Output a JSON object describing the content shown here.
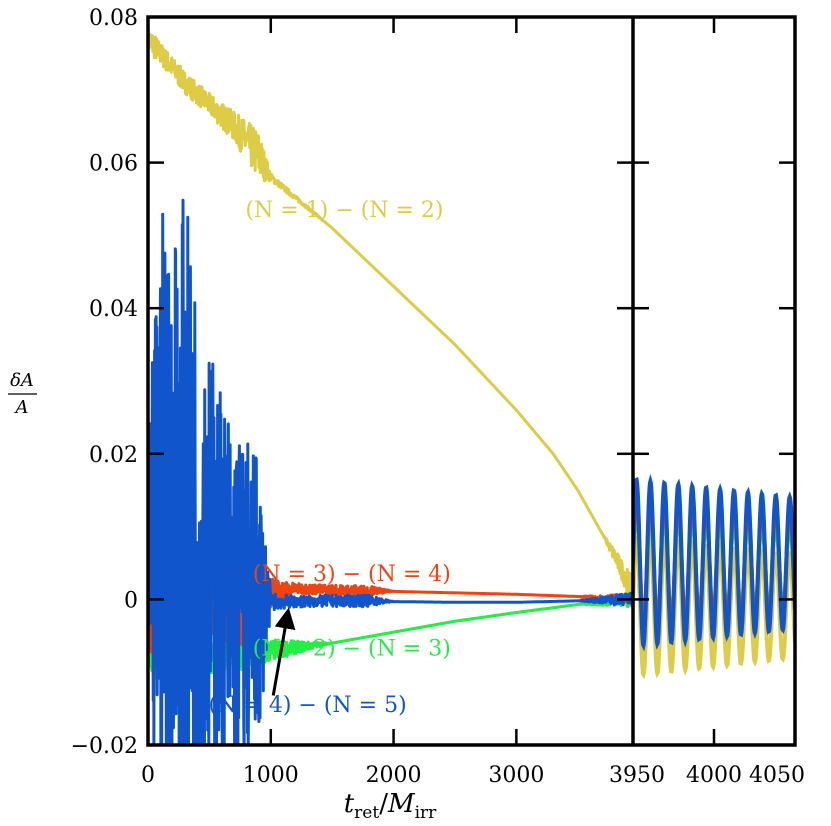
{
  "chart_data": {
    "type": "line",
    "ylabel": {
      "numerator": "δA",
      "denominator": "A"
    },
    "xlabel": {
      "t": "t",
      "t_sub": "ret",
      "M": "M",
      "M_sub": "irr"
    },
    "panels": [
      {
        "name": "left",
        "xlim": [
          0,
          3950
        ],
        "xticks": [
          0,
          1000,
          2000,
          3000
        ]
      },
      {
        "name": "right",
        "xlim": [
          3950,
          4050
        ],
        "xticks": [
          3950,
          4000,
          4050
        ]
      }
    ],
    "ylim": [
      -0.02,
      0.08
    ],
    "yticks": [
      -0.02,
      0,
      0.02,
      0.04,
      0.06,
      0.08
    ],
    "ytick_labels": [
      "−0.02",
      "0",
      "0.02",
      "0.04",
      "0.06",
      "0.08"
    ],
    "xtick_labels": [
      "0",
      "1000",
      "2000",
      "3000",
      "3950",
      "4000",
      "4050"
    ],
    "grid": false,
    "series": [
      {
        "name": "(N = 1) − (N = 2)",
        "color": "#DDCC44",
        "left": {
          "x": [
            0,
            100,
            300,
            500,
            700,
            900,
            1000,
            1500,
            2000,
            2500,
            3000,
            3300,
            3500,
            3700,
            3800,
            3950
          ],
          "y": [
            0.077,
            0.075,
            0.071,
            0.068,
            0.065,
            0.061,
            0.058,
            0.051,
            0.043,
            0.035,
            0.026,
            0.02,
            0.015,
            0.009,
            0.006,
            0.001
          ],
          "noise": [
            0.002,
            0.0015,
            0.0015,
            0.0015,
            0.002,
            0.0035,
            0.0005,
            0,
            0,
            0,
            0,
            0,
            0,
            0,
            0.001,
            0.002
          ]
        },
        "right": {
          "mid": -0.001,
          "amp_start": 0.0095,
          "amp_end": 0.007,
          "period": 8.6
        }
      },
      {
        "name": "(N = 2) − (N = 3)",
        "color": "#22EE44",
        "left": {
          "x": [
            0,
            100,
            300,
            500,
            700,
            900,
            1000,
            1500,
            2000,
            2500,
            3000,
            3500,
            3950
          ],
          "y": [
            -0.007,
            -0.008,
            -0.0085,
            -0.008,
            -0.0078,
            -0.0076,
            -0.007,
            -0.006,
            -0.0045,
            -0.003,
            -0.0018,
            -0.0007,
            0.0
          ],
          "noise": [
            0.002,
            0.004,
            0.003,
            0.0025,
            0.0025,
            0.002,
            0.0015,
            0,
            0,
            0,
            0,
            0,
            0.001
          ]
        },
        "right": {
          "mid": 0.0045,
          "amp_start": 0.0077,
          "amp_end": 0.0055,
          "period": 8.6
        }
      },
      {
        "name": "(N = 3) − (N = 4)",
        "color": "#EE4411",
        "left": {
          "x": [
            0,
            100,
            300,
            500,
            700,
            900,
            1000,
            1200,
            1500,
            1800,
            2000,
            2500,
            3000,
            3500,
            3950
          ],
          "y": [
            0.0,
            0.0,
            0.0,
            0.0,
            0.0,
            0.0,
            0.001,
            0.0015,
            0.0013,
            0.0012,
            0.0011,
            0.0009,
            0.0007,
            0.0004,
            0.0
          ],
          "noise": [
            0.006,
            0.012,
            0.01,
            0.006,
            0.006,
            0.008,
            0.002,
            0.0007,
            0.0007,
            0.0007,
            0,
            0,
            0,
            0,
            0.0008
          ]
        },
        "right": {
          "mid": 0.005,
          "amp_start": 0.009,
          "amp_end": 0.0075,
          "period": 8.6
        }
      },
      {
        "name": "(N = 4) − (N = 5)",
        "color": "#1155CC",
        "left": {
          "x": [
            0,
            100,
            300,
            500,
            700,
            900,
            1000,
            1200,
            1500,
            1800,
            2000,
            2500,
            3000,
            3500,
            3950
          ],
          "y": [
            0.0,
            0.01,
            0.01,
            0.005,
            0.0,
            0.0,
            -0.0003,
            -0.0003,
            -0.0002,
            -0.0002,
            -0.0003,
            -0.0004,
            -0.0004,
            -0.0002,
            0.0
          ],
          "noise": [
            0.02,
            0.045,
            0.045,
            0.03,
            0.025,
            0.02,
            0.0012,
            0.0008,
            0.0008,
            0.0008,
            0,
            0,
            0,
            0,
            0.001
          ]
        },
        "right": {
          "mid": 0.005,
          "amp_start": 0.0115,
          "amp_end": 0.009,
          "period": 8.6
        }
      }
    ],
    "annotations": [
      {
        "text": "(N = 1) − (N = 2)",
        "series": "(N = 1) − (N = 2)",
        "x": 1600,
        "y": 0.0525
      },
      {
        "text": "(N = 3) − (N = 4)",
        "series": "(N = 3) − (N = 4)",
        "x": 1660,
        "y": 0.0025
      },
      {
        "text": "(N = 2) − (N = 3)",
        "series": "(N = 2) − (N = 3)",
        "x": 1660,
        "y": -0.0077
      },
      {
        "text": "(N = 4) − (N = 5)",
        "series": "(N = 4) − (N = 5)",
        "x": 1300,
        "y": -0.0155
      }
    ],
    "arrow": {
      "from": [
        1020,
        -0.0132
      ],
      "to": [
        1140,
        -0.0017
      ],
      "color": "#000000"
    }
  }
}
